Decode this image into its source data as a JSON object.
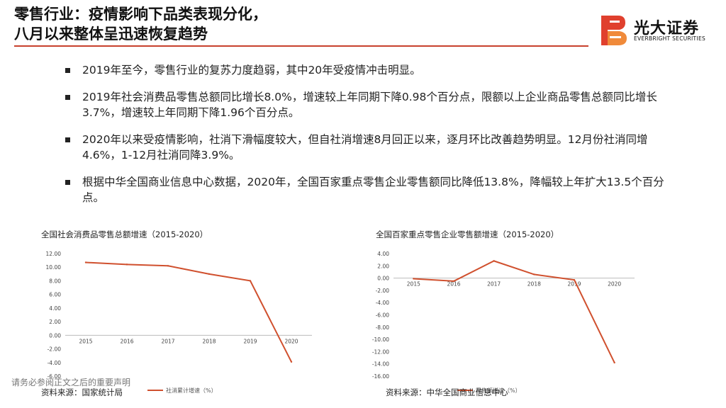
{
  "header": {
    "title_line1": "零售行业：疫情影响下品类表现分化，",
    "title_line2": "八月以来整体呈迅速恢复趋势"
  },
  "logo": {
    "name": "光大证券",
    "english": "EVERBRIGHT SECURITIES"
  },
  "bullets": [
    "2019年至今，零售行业的复苏力度趋弱，其中20年受疫情冲击明显。",
    "2019年社会消费品零售总额同比增长8.0%，增速较上年同期下降0.98个百分点，限额以上企业商品零售总额同比增长3.7%，增速较上年同期下降1.96个百分点。",
    "2020年以来受疫情影响，社消下滑幅度较大，但自社消增速8月回正以来，逐月环比改善趋势明显。12月份社消同增4.6%，1-12月社消同降3.9%。",
    "根据中华全国商业信息中心数据，2020年，全国百家重点零售企业零售额同比降低13.8%，降幅较上年扩大13.5个百分点。"
  ],
  "colors": {
    "accent": "#c8412d",
    "series": "#d0502e",
    "grid": "#dddddd",
    "logo_red": "#e0402e",
    "logo_orange": "#f08a3a"
  },
  "chart_data": [
    {
      "type": "line",
      "title": "全国社会消费品零售总额增速（2015-2020）",
      "categories": [
        "2015",
        "2016",
        "2017",
        "2018",
        "2019",
        "2020"
      ],
      "series": [
        {
          "name": "社消累计增速（%）",
          "values": [
            10.7,
            10.4,
            10.2,
            9.0,
            8.0,
            -3.9
          ]
        }
      ],
      "yticks": [
        "12.00",
        "10.00",
        "8.00",
        "6.00",
        "4.00",
        "2.00",
        "0.00",
        "-2.00",
        "-4.00",
        "-6.00"
      ],
      "ylim": [
        -6,
        12
      ],
      "source": "资料来源：国家统计局"
    },
    {
      "type": "line",
      "title": "全国百家重点零售企业零售额增速（2015-2020）",
      "categories": [
        "2015",
        "2016",
        "2017",
        "2018",
        "2019",
        "2020"
      ],
      "series": [
        {
          "name": "零售额增速（%）",
          "values": [
            -0.1,
            -0.5,
            2.8,
            0.6,
            -0.3,
            -13.8
          ]
        }
      ],
      "yticks": [
        "4.00",
        "2.00",
        "0.00",
        "-2.00",
        "-4.00",
        "-6.00",
        "-8.00",
        "-10.00",
        "-12.00",
        "-14.00",
        "-16.00"
      ],
      "ylim": [
        -16,
        4
      ],
      "source": "资料来源：中华全国商业信息中心"
    }
  ],
  "footer": {
    "disclaimer": "请务必参阅正文之后的重要声明"
  }
}
